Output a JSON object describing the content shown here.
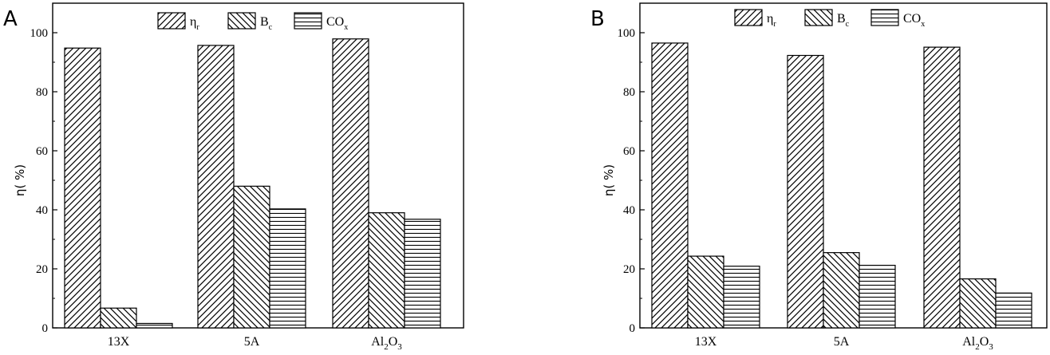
{
  "chart_data": [
    {
      "type": "bar",
      "panel_label": "A",
      "categories": [
        "13X",
        "5A",
        "Al2O3"
      ],
      "category_display": [
        {
          "main": "13X",
          "sub": ""
        },
        {
          "main": "5A",
          "sub": ""
        },
        {
          "main": "Al",
          "sub": "2",
          "main2": "O",
          "sub2": "3"
        }
      ],
      "series": [
        {
          "name": "ηr",
          "display_main": "η",
          "display_sub": "r",
          "pattern": "diag-right",
          "values": [
            94.8,
            95.7,
            97.9
          ]
        },
        {
          "name": "Bc",
          "display_main": "B",
          "display_sub": "c",
          "pattern": "diag-left",
          "values": [
            6.7,
            48.0,
            39.0
          ]
        },
        {
          "name": "COx",
          "display_main": "CO",
          "display_sub": "x",
          "pattern": "horizontal",
          "values": [
            1.5,
            40.3,
            36.8
          ]
        }
      ],
      "ylabel": "η( %)",
      "ylim": [
        0,
        110
      ],
      "yticks": [
        0,
        20,
        40,
        60,
        80,
        100
      ],
      "legend": "top-center"
    },
    {
      "type": "bar",
      "panel_label": "B",
      "categories": [
        "13X",
        "5A",
        "Al2O3"
      ],
      "category_display": [
        {
          "main": "13X",
          "sub": ""
        },
        {
          "main": "5A",
          "sub": ""
        },
        {
          "main": "Al",
          "sub": "2",
          "main2": "O",
          "sub2": "3"
        }
      ],
      "series": [
        {
          "name": "ηr",
          "display_main": "η",
          "display_sub": "r",
          "pattern": "diag-right",
          "values": [
            96.5,
            92.3,
            95.1
          ]
        },
        {
          "name": "Bc",
          "display_main": "B",
          "display_sub": "c",
          "pattern": "diag-left",
          "values": [
            24.3,
            25.5,
            16.6
          ]
        },
        {
          "name": "COx",
          "display_main": "CO",
          "display_sub": "x",
          "pattern": "horizontal",
          "values": [
            20.9,
            21.2,
            11.8
          ]
        }
      ],
      "ylabel": "η( %)",
      "ylim": [
        0,
        110
      ],
      "yticks": [
        0,
        20,
        40,
        60,
        80,
        100
      ],
      "legend": "top-center"
    }
  ]
}
